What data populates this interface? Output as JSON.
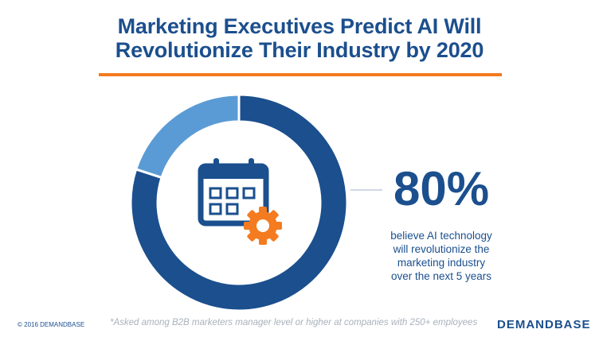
{
  "title": {
    "line1": "Marketing Executives Predict AI Will",
    "line2": "Revolutionize Their Industry by 2020"
  },
  "stat": {
    "value": "80%",
    "caption_lines": [
      "believe AI technology",
      "will revolutionize the",
      "marketing industry",
      "over the next 5 years"
    ]
  },
  "footer": {
    "copyright": "© 2016 DEMANDBASE",
    "footnote": "*Asked among B2B marketers manager level or higher at companies with 250+ employees",
    "logo": "DEMANDBASE"
  },
  "icons": [
    "calendar-icon",
    "gear-icon"
  ],
  "colors": {
    "primary": "#1b4f8e",
    "secondary": "#5b9bd5",
    "accent": "#f47b20"
  },
  "chart_data": {
    "type": "pie",
    "categories": [
      "",
      ""
    ],
    "values": [
      80,
      20
    ],
    "colors": [
      "#1b4f8e",
      "#5b9bd5"
    ]
  }
}
